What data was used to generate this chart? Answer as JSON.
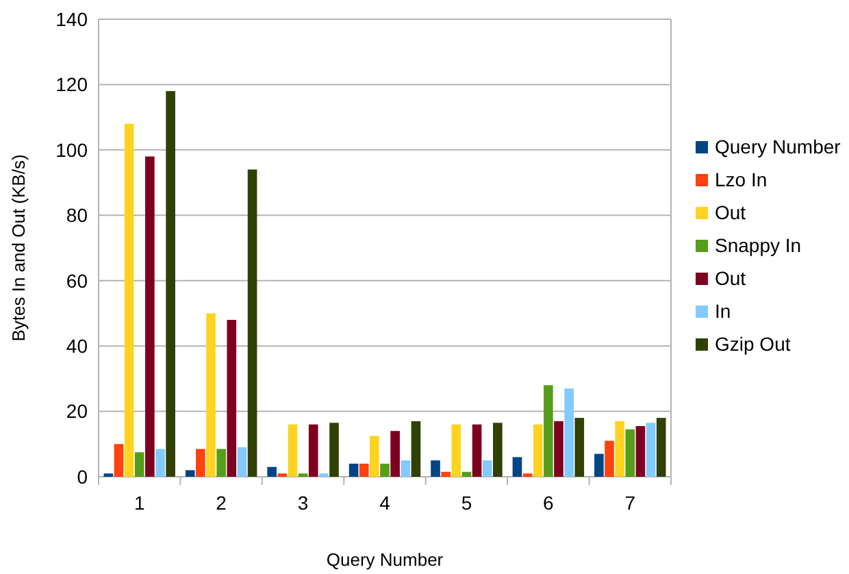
{
  "chart_data": {
    "type": "bar",
    "xlabel": "Query Number",
    "ylabel": "Bytes In and Out (KB/s)",
    "categories": [
      "1",
      "2",
      "3",
      "4",
      "5",
      "6",
      "7"
    ],
    "series": [
      {
        "name": "Query Number",
        "color": "#004586",
        "values": [
          1,
          2,
          3,
          4,
          5,
          6,
          7
        ]
      },
      {
        "name": "Lzo In",
        "color": "#ff420e",
        "values": [
          10,
          8.5,
          1,
          4,
          1.5,
          1,
          11
        ]
      },
      {
        "name": "Out",
        "color": "#ffd320",
        "values": [
          108,
          50,
          16,
          12.5,
          16,
          16,
          17
        ]
      },
      {
        "name": "Snappy In",
        "color": "#579d1c",
        "values": [
          7.5,
          8.5,
          1,
          4,
          1.5,
          28,
          14.5
        ]
      },
      {
        "name": "Out",
        "color": "#7e0021",
        "values": [
          98,
          48,
          16,
          14,
          16,
          17,
          15.5
        ]
      },
      {
        "name": "In",
        "color": "#83caff",
        "values": [
          8.5,
          9,
          1,
          5,
          5,
          27,
          16.5
        ]
      },
      {
        "name": "Gzip Out",
        "color": "#314004",
        "values": [
          118,
          94,
          16.5,
          17,
          16.5,
          18,
          18
        ]
      }
    ],
    "ylim": [
      0,
      140
    ],
    "yticks": [
      0,
      20,
      40,
      60,
      80,
      100,
      120,
      140
    ],
    "grid": "y",
    "legend": "right"
  }
}
